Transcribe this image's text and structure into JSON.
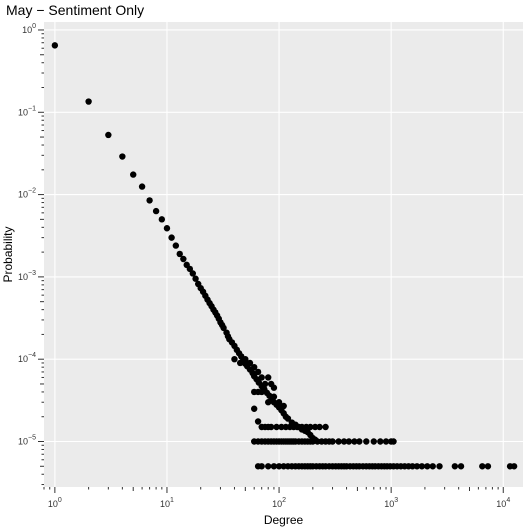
{
  "chart_data": {
    "type": "scatter",
    "title": "May − Sentiment Only",
    "xlabel": "Degree",
    "ylabel": "Probability",
    "xscale": "log",
    "yscale": "log",
    "xlim": [
      0.8,
      15000
    ],
    "ylim": [
      2.8e-06,
      1.25
    ],
    "grid": true,
    "background": "#EBEBEB",
    "grid_color": "#FFFFFF",
    "point_color": "#000000",
    "x_ticks": [
      {
        "value": 1,
        "base": "10",
        "exp": "0"
      },
      {
        "value": 10,
        "base": "10",
        "exp": "1"
      },
      {
        "value": 100,
        "base": "10",
        "exp": "2"
      },
      {
        "value": 1000,
        "base": "10",
        "exp": "3"
      },
      {
        "value": 10000,
        "base": "10",
        "exp": "4"
      }
    ],
    "y_ticks": [
      {
        "value": 1,
        "base": "10",
        "exp": "0"
      },
      {
        "value": 0.1,
        "base": "10",
        "exp": "−1"
      },
      {
        "value": 0.01,
        "base": "10",
        "exp": "−2"
      },
      {
        "value": 0.001,
        "base": "10",
        "exp": "−3"
      },
      {
        "value": 0.0001,
        "base": "10",
        "exp": "−4"
      },
      {
        "value": 1e-05,
        "base": "10",
        "exp": "−5"
      }
    ],
    "points": [
      [
        1,
        0.65
      ],
      [
        2,
        0.135
      ],
      [
        3,
        0.053
      ],
      [
        4,
        0.029
      ],
      [
        5,
        0.0175
      ],
      [
        6,
        0.0125
      ],
      [
        7,
        0.0085
      ],
      [
        8,
        0.0063
      ],
      [
        9,
        0.005
      ],
      [
        10,
        0.0039
      ],
      [
        11,
        0.003
      ],
      [
        12,
        0.0024
      ],
      [
        13,
        0.0019
      ],
      [
        14,
        0.00165
      ],
      [
        15,
        0.0014
      ],
      [
        16,
        0.00125
      ],
      [
        17,
        0.0011
      ],
      [
        18,
        0.00095
      ],
      [
        19,
        0.00082
      ],
      [
        20,
        0.00073
      ],
      [
        21,
        0.00066
      ],
      [
        22,
        0.00059
      ],
      [
        23,
        0.00053
      ],
      [
        24,
        0.00048
      ],
      [
        25,
        0.00044
      ],
      [
        26,
        0.0004
      ],
      [
        27,
        0.00037
      ],
      [
        28,
        0.00034
      ],
      [
        29,
        0.00031
      ],
      [
        30,
        0.00028
      ],
      [
        31,
        0.00026
      ],
      [
        32,
        0.00024
      ],
      [
        34,
        0.00021
      ],
      [
        35,
        0.00019
      ],
      [
        36,
        0.000175
      ],
      [
        38,
        0.00016
      ],
      [
        40,
        0.000145
      ],
      [
        42,
        0.00013
      ],
      [
        44,
        0.000118
      ],
      [
        46,
        0.000108
      ],
      [
        48,
        9.8e-05
      ],
      [
        50,
        8.8e-05
      ],
      [
        52,
        8.2e-05
      ],
      [
        55,
        7.5e-05
      ],
      [
        58,
        6.8e-05
      ],
      [
        60,
        6.2e-05
      ],
      [
        63,
        5.7e-05
      ],
      [
        66,
        5.2e-05
      ],
      [
        70,
        4.7e-05
      ],
      [
        74,
        4.3e-05
      ],
      [
        78,
        3.9e-05
      ],
      [
        82,
        3.6e-05
      ],
      [
        86,
        3.3e-05
      ],
      [
        90,
        3e-05
      ],
      [
        95,
        2.8e-05
      ],
      [
        100,
        2.6e-05
      ],
      [
        105,
        2.4e-05
      ],
      [
        110,
        2.2e-05
      ],
      [
        115,
        2e-05
      ],
      [
        120,
        1.9e-05
      ],
      [
        130,
        1.7e-05
      ],
      [
        140,
        1.6e-05
      ],
      [
        150,
        1.5e-05
      ],
      [
        160,
        1.4e-05
      ],
      [
        170,
        1.35e-05
      ],
      [
        180,
        1.3e-05
      ],
      [
        190,
        1.2e-05
      ],
      [
        200,
        1.1e-05
      ],
      [
        210,
        1.05e-05
      ],
      [
        40,
        0.0001
      ],
      [
        45,
        9e-05
      ],
      [
        50,
        0.0001
      ],
      [
        55,
        9e-05
      ],
      [
        60,
        8e-05
      ],
      [
        65,
        7e-05
      ],
      [
        70,
        6e-05
      ],
      [
        75,
        5e-05
      ],
      [
        80,
        6e-05
      ],
      [
        85,
        5e-05
      ],
      [
        90,
        4.5e-05
      ],
      [
        60,
        4e-05
      ],
      [
        65,
        4e-05
      ],
      [
        70,
        4e-05
      ],
      [
        80,
        3e-05
      ],
      [
        90,
        3.5e-05
      ],
      [
        100,
        3e-05
      ],
      [
        110,
        2.7e-05
      ],
      [
        60,
        2.5e-05
      ],
      [
        65,
        1.75e-05
      ],
      [
        70,
        1.5e-05
      ],
      [
        75,
        1.5e-05
      ],
      [
        80,
        1.5e-05
      ],
      [
        85,
        1.5e-05
      ],
      [
        95,
        1.5e-05
      ],
      [
        105,
        1.5e-05
      ],
      [
        115,
        1.5e-05
      ],
      [
        125,
        1.5e-05
      ],
      [
        135,
        1.5e-05
      ],
      [
        145,
        1.5e-05
      ],
      [
        160,
        1.5e-05
      ],
      [
        175,
        1.5e-05
      ],
      [
        190,
        1.5e-05
      ],
      [
        210,
        1.5e-05
      ],
      [
        230,
        1.5e-05
      ],
      [
        260,
        1.5e-05
      ],
      [
        60,
        1e-05
      ],
      [
        65,
        1e-05
      ],
      [
        70,
        1e-05
      ],
      [
        75,
        1e-05
      ],
      [
        80,
        1e-05
      ],
      [
        85,
        1e-05
      ],
      [
        90,
        1e-05
      ],
      [
        95,
        1e-05
      ],
      [
        100,
        1e-05
      ],
      [
        105,
        1e-05
      ],
      [
        110,
        1e-05
      ],
      [
        115,
        1e-05
      ],
      [
        120,
        1e-05
      ],
      [
        125,
        1e-05
      ],
      [
        130,
        1e-05
      ],
      [
        135,
        1e-05
      ],
      [
        140,
        1e-05
      ],
      [
        150,
        1e-05
      ],
      [
        160,
        1e-05
      ],
      [
        170,
        1e-05
      ],
      [
        180,
        1e-05
      ],
      [
        190,
        1e-05
      ],
      [
        200,
        1e-05
      ],
      [
        220,
        1e-05
      ],
      [
        240,
        1e-05
      ],
      [
        260,
        1e-05
      ],
      [
        280,
        1e-05
      ],
      [
        300,
        1e-05
      ],
      [
        340,
        1e-05
      ],
      [
        380,
        1e-05
      ],
      [
        420,
        1e-05
      ],
      [
        470,
        1e-05
      ],
      [
        520,
        1e-05
      ],
      [
        600,
        1e-05
      ],
      [
        700,
        1e-05
      ],
      [
        800,
        1e-05
      ],
      [
        900,
        1e-05
      ],
      [
        1000,
        1e-05
      ],
      [
        1050,
        1e-05
      ],
      [
        65,
        5e-06
      ],
      [
        70,
        5e-06
      ],
      [
        80,
        5e-06
      ],
      [
        90,
        5e-06
      ],
      [
        100,
        5e-06
      ],
      [
        110,
        5e-06
      ],
      [
        120,
        5e-06
      ],
      [
        130,
        5e-06
      ],
      [
        140,
        5e-06
      ],
      [
        150,
        5e-06
      ],
      [
        160,
        5e-06
      ],
      [
        170,
        5e-06
      ],
      [
        180,
        5e-06
      ],
      [
        190,
        5e-06
      ],
      [
        200,
        5e-06
      ],
      [
        215,
        5e-06
      ],
      [
        230,
        5e-06
      ],
      [
        245,
        5e-06
      ],
      [
        260,
        5e-06
      ],
      [
        280,
        5e-06
      ],
      [
        300,
        5e-06
      ],
      [
        320,
        5e-06
      ],
      [
        340,
        5e-06
      ],
      [
        360,
        5e-06
      ],
      [
        380,
        5e-06
      ],
      [
        400,
        5e-06
      ],
      [
        430,
        5e-06
      ],
      [
        460,
        5e-06
      ],
      [
        490,
        5e-06
      ],
      [
        520,
        5e-06
      ],
      [
        560,
        5e-06
      ],
      [
        600,
        5e-06
      ],
      [
        640,
        5e-06
      ],
      [
        680,
        5e-06
      ],
      [
        720,
        5e-06
      ],
      [
        770,
        5e-06
      ],
      [
        820,
        5e-06
      ],
      [
        870,
        5e-06
      ],
      [
        920,
        5e-06
      ],
      [
        980,
        5e-06
      ],
      [
        1050,
        5e-06
      ],
      [
        1130,
        5e-06
      ],
      [
        1220,
        5e-06
      ],
      [
        1320,
        5e-06
      ],
      [
        1430,
        5e-06
      ],
      [
        1550,
        5e-06
      ],
      [
        1700,
        5e-06
      ],
      [
        1880,
        5e-06
      ],
      [
        2100,
        5e-06
      ],
      [
        2350,
        5e-06
      ],
      [
        2700,
        5e-06
      ],
      [
        3700,
        5e-06
      ],
      [
        4200,
        5e-06
      ],
      [
        6500,
        5e-06
      ],
      [
        7300,
        5e-06
      ],
      [
        11500,
        5e-06
      ],
      [
        12500,
        5e-06
      ]
    ]
  }
}
